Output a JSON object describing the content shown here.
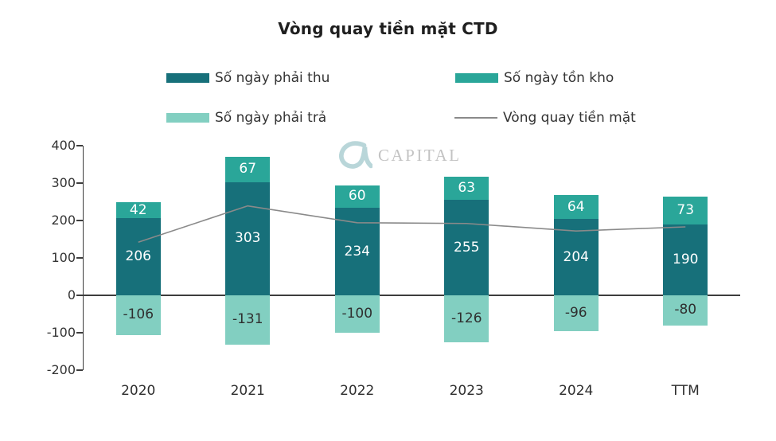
{
  "title": "Vòng quay tiền mặt CTD",
  "watermark": {
    "text": "CAPITAL",
    "logo": "alpha-capital-logo"
  },
  "colors": {
    "receivable": "#17707a",
    "inventory": "#2aa699",
    "payable": "#82cfc1",
    "line": "#8a8a8a",
    "axis": "#3d3d3d",
    "watermark_logo": "#b9d6d9",
    "watermark_text": "#c3c3c3"
  },
  "legend": [
    {
      "label": "Số ngày phải thu",
      "color": "#17707a",
      "type": "swatch"
    },
    {
      "label": "Số ngày tồn kho",
      "color": "#2aa699",
      "type": "swatch"
    },
    {
      "label": "Số ngày phải trả",
      "color": "#82cfc1",
      "type": "swatch"
    },
    {
      "label": "Vòng quay tiền mặt",
      "color": "#8a8a8a",
      "type": "line"
    }
  ],
  "chart_data": {
    "type": "bar",
    "subtype": "stacked-bar-with-line",
    "title": "Vòng quay tiền mặt CTD",
    "categories": [
      "2020",
      "2021",
      "2022",
      "2023",
      "2024",
      "TTM"
    ],
    "series": [
      {
        "name": "Số ngày phải thu",
        "render": "bar",
        "color": "#17707a",
        "label_color": "#ffffff",
        "values": [
          206,
          303,
          234,
          255,
          204,
          190
        ]
      },
      {
        "name": "Số ngày tồn kho",
        "render": "bar",
        "color": "#2aa699",
        "label_color": "#ffffff",
        "values": [
          42,
          67,
          60,
          63,
          64,
          73
        ]
      },
      {
        "name": "Số ngày phải trả",
        "render": "bar",
        "color": "#82cfc1",
        "label_color": "#2f2f2f",
        "values": [
          -106,
          -131,
          -100,
          -126,
          -96,
          -80
        ]
      },
      {
        "name": "Vòng quay tiền mặt",
        "render": "line",
        "color": "#8a8a8a",
        "values": [
          142,
          239,
          194,
          192,
          172,
          183
        ]
      }
    ],
    "xlabel": "",
    "ylabel": "",
    "ylim": [
      -200,
      400
    ],
    "y_ticks": [
      400,
      300,
      200,
      100,
      0,
      -100,
      -200
    ],
    "grid": false,
    "legend_position": "top"
  }
}
